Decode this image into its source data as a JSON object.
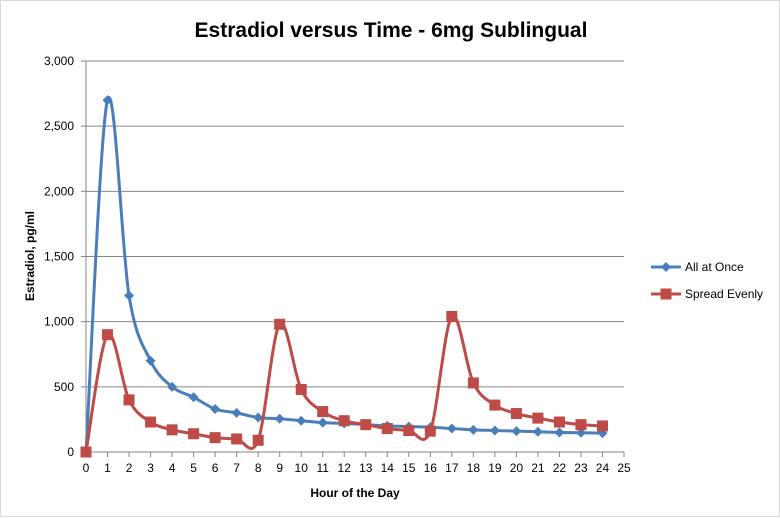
{
  "chart_data": {
    "type": "line",
    "title": "Estradiol versus Time - 6mg Sublingual",
    "xlabel": "Hour of the Day",
    "ylabel": "Estradiol, pg/ml",
    "xlim": [
      0,
      25
    ],
    "ylim": [
      0,
      3000
    ],
    "xticks": [
      0,
      1,
      2,
      3,
      4,
      5,
      6,
      7,
      8,
      9,
      10,
      11,
      12,
      13,
      14,
      15,
      16,
      17,
      18,
      19,
      20,
      21,
      22,
      23,
      24,
      25
    ],
    "yticks": [
      0,
      500,
      1000,
      1500,
      2000,
      2500,
      3000
    ],
    "ytick_labels": [
      "0",
      "500",
      "1,000",
      "1,500",
      "2,000",
      "2,500",
      "3,000"
    ],
    "grid": "horizontal",
    "smooth": true,
    "legend": "right",
    "x": [
      0,
      1,
      2,
      3,
      4,
      5,
      6,
      7,
      8,
      9,
      10,
      11,
      12,
      13,
      14,
      15,
      16,
      17,
      18,
      19,
      20,
      21,
      22,
      23,
      24
    ],
    "series": [
      {
        "name": "All at Once",
        "color": "#4a7ebb",
        "marker": "diamond",
        "values": [
          0,
          2700,
          1200,
          700,
          500,
          420,
          330,
          300,
          265,
          255,
          240,
          225,
          220,
          210,
          200,
          195,
          190,
          180,
          170,
          165,
          160,
          155,
          150,
          148,
          145
        ]
      },
      {
        "name": "Spread Evenly",
        "color": "#be4b48",
        "marker": "square",
        "values": [
          0,
          900,
          400,
          230,
          170,
          140,
          110,
          100,
          90,
          980,
          480,
          310,
          240,
          210,
          180,
          165,
          160,
          1040,
          530,
          360,
          295,
          260,
          230,
          210,
          200
        ]
      }
    ]
  }
}
